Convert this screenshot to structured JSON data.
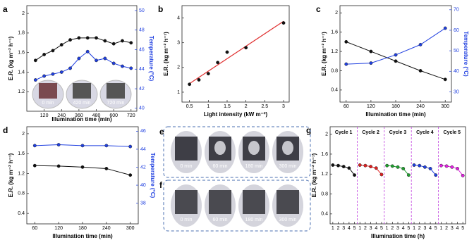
{
  "chart_data": [
    {
      "type": "line",
      "panel_label": "a",
      "xlabel": "Illumination time (min)",
      "ylabel": "E.R. (kg m⁻² h⁻¹)",
      "y2label": "Temperature (°C)",
      "x": [
        60,
        120,
        180,
        240,
        300,
        360,
        420,
        480,
        540,
        600,
        660,
        720
      ],
      "xlim": [
        0,
        760
      ],
      "xticks": [
        120,
        240,
        360,
        480,
        600,
        720
      ],
      "ylim": [
        1.0,
        2.08
      ],
      "yticks": [
        1.2,
        1.4,
        1.6,
        1.8,
        2.0
      ],
      "y2lim": [
        39.7,
        50.5
      ],
      "y2ticks": [
        40,
        42,
        44,
        46,
        48,
        50
      ],
      "y2color": "#1f3fe0",
      "series": [
        {
          "color": "#111111",
          "values": [
            1.52,
            1.58,
            1.62,
            1.68,
            1.73,
            1.75,
            1.75,
            1.75,
            1.72,
            1.69,
            1.72,
            1.7
          ]
        },
        {
          "color": "#1f3fe0",
          "axis": "y2",
          "values": [
            42.9,
            43.3,
            43.5,
            43.7,
            44.1,
            45.1,
            45.8,
            44.9,
            45.1,
            44.6,
            44.3,
            44.1
          ]
        }
      ],
      "insets": [
        "0 min",
        "420 min",
        "720 min"
      ]
    },
    {
      "type": "scatter",
      "panel_label": "b",
      "xlabel": "Light intensity (kW m⁻²)",
      "ylabel": "E.R. (kg m⁻² h⁻¹)",
      "x": [
        0.5,
        0.75,
        1.0,
        1.25,
        1.5,
        2.0,
        3.0
      ],
      "values": [
        1.32,
        1.5,
        1.75,
        2.2,
        2.62,
        2.8,
        3.8
      ],
      "color": "#111111",
      "fit_color": "#e03030",
      "xlim": [
        0.3,
        3.15
      ],
      "xticks": [
        0.5,
        1.0,
        1.5,
        2.0,
        2.5,
        3.0
      ],
      "ylim": [
        0.6,
        4.5
      ],
      "yticks": [
        1,
        2,
        3,
        4
      ]
    },
    {
      "type": "line",
      "panel_label": "c",
      "xlabel": "Illumination time (min)",
      "ylabel": "E.R. (kg m⁻² h⁻¹)",
      "y2label": "Temperature (°C)",
      "x": [
        60,
        120,
        180,
        240,
        300
      ],
      "xlim": [
        45,
        315
      ],
      "xticks": [
        60,
        120,
        180,
        240,
        300
      ],
      "ylim": [
        0.15,
        2.15
      ],
      "yticks": [
        0.4,
        0.8,
        1.2,
        1.6,
        2.0
      ],
      "y2lim": [
        25,
        72
      ],
      "y2ticks": [
        30,
        40,
        50,
        60,
        70
      ],
      "y2color": "#1f3fe0",
      "series": [
        {
          "color": "#111111",
          "values": [
            1.4,
            1.2,
            1.0,
            0.8,
            0.62
          ]
        },
        {
          "color": "#1f3fe0",
          "axis": "y2",
          "values": [
            43.5,
            44,
            48,
            53,
            61
          ]
        }
      ]
    },
    {
      "type": "line",
      "panel_label": "d",
      "xlabel": "Illumination time (min)",
      "ylabel": "E.R. (kg m⁻² h⁻¹)",
      "y2label": "Temperature (°C)",
      "x": [
        60,
        120,
        180,
        240,
        300
      ],
      "xlim": [
        40,
        320
      ],
      "xticks": [
        60,
        120,
        180,
        240,
        300
      ],
      "ylim": [
        0.19,
        2.14
      ],
      "yticks": [
        0.4,
        0.8,
        1.2,
        1.6,
        2.0
      ],
      "y2lim": [
        35.7,
        46.5
      ],
      "y2ticks": [
        38,
        40,
        42,
        44,
        46
      ],
      "y2color": "#1f3fe0",
      "series": [
        {
          "color": "#111111",
          "values": [
            1.36,
            1.35,
            1.33,
            1.3,
            1.17
          ]
        },
        {
          "color": "#1f3fe0",
          "axis": "y2",
          "values": [
            44.4,
            44.5,
            44.4,
            44.4,
            44.3
          ]
        }
      ]
    },
    {
      "type": "cycles",
      "panel_label": "g",
      "xlabel": "Illumination time (h)",
      "ylabel": "E.R. (kg m⁻² h⁻¹)",
      "x": [
        1,
        2,
        3,
        4,
        5
      ],
      "xlim": [
        0.5,
        5.5
      ],
      "xticks": [
        1,
        2,
        3,
        4,
        5
      ],
      "ylim": [
        0.2,
        2.15
      ],
      "yticks": [
        0.4,
        0.8,
        1.2,
        1.6,
        2.0
      ],
      "divider_color": "#c040e0",
      "series": [
        {
          "name": "Cycle 1",
          "color": "#111111",
          "values": [
            1.38,
            1.37,
            1.35,
            1.32,
            1.18
          ]
        },
        {
          "name": "Cycle 2",
          "color": "#e02020",
          "values": [
            1.38,
            1.37,
            1.35,
            1.32,
            1.19
          ]
        },
        {
          "name": "Cycle 3",
          "color": "#20a030",
          "values": [
            1.37,
            1.36,
            1.34,
            1.31,
            1.18
          ]
        },
        {
          "name": "Cycle 4",
          "color": "#1f3fe0",
          "values": [
            1.38,
            1.37,
            1.34,
            1.31,
            1.18
          ]
        },
        {
          "name": "Cycle 5",
          "color": "#e020e0",
          "values": [
            1.37,
            1.36,
            1.34,
            1.31,
            1.17
          ]
        }
      ]
    }
  ],
  "photo_panels": [
    {
      "label": "e",
      "captions": [
        "0 min",
        "60 min",
        "180 min",
        "300 min"
      ]
    },
    {
      "label": "f",
      "captions": [
        "0 min",
        "60 min",
        "180 min",
        "300 min"
      ]
    }
  ]
}
